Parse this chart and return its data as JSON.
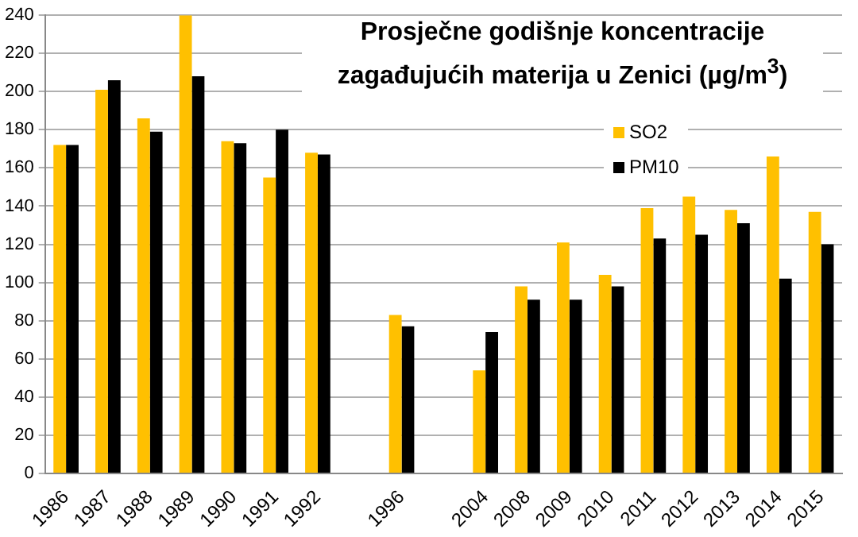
{
  "chart_data": {
    "type": "bar",
    "title": "Prosječne godišnje koncentracije zagađujućih materija u Zenici (µg/m$^{3}$)",
    "categories": [
      "1986",
      "1987",
      "1988",
      "1989",
      "1990",
      "1991",
      "1992",
      null,
      "1996",
      null,
      "2004",
      "2008",
      "2009",
      "2010",
      "2011",
      "2012",
      "2013",
      "2014",
      "2015"
    ],
    "series": [
      {
        "name": "SO2",
        "color": "#ffc000",
        "values": [
          172,
          201,
          186,
          240,
          174,
          155,
          168,
          null,
          83,
          null,
          54,
          98,
          121,
          104,
          139,
          145,
          138,
          166,
          137
        ]
      },
      {
        "name": "PM10",
        "color": "#000000",
        "values": [
          172,
          206,
          179,
          208,
          173,
          180,
          167,
          null,
          77,
          null,
          74,
          91,
          91,
          98,
          123,
          125,
          131,
          102,
          120
        ]
      }
    ],
    "ylim": [
      0,
      240
    ],
    "yticks": [
      0,
      20,
      40,
      60,
      80,
      100,
      120,
      140,
      160,
      180,
      200,
      220,
      240
    ],
    "grid": "y",
    "legend": "right"
  }
}
